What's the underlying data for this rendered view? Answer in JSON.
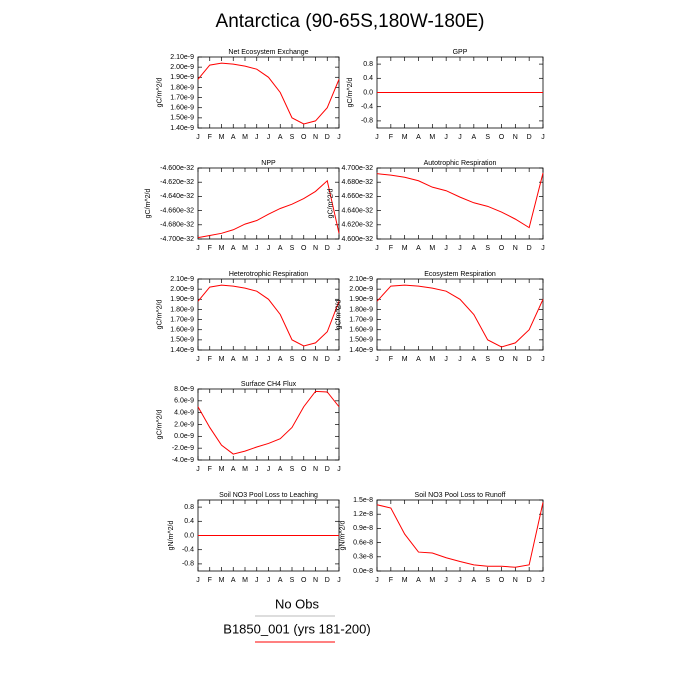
{
  "title": "Antarctica (90-65S,180W-180E)",
  "legend": [
    {
      "label": "No Obs",
      "color": "#bbbbbb"
    },
    {
      "label": "B1850_001 (yrs 181-200)",
      "color": "#ff0000"
    }
  ],
  "chart_data": [
    {
      "type": "line",
      "title": "Net Ecosystem Exchange",
      "ylabel": "gC/m^2/d",
      "categories": [
        "J",
        "F",
        "M",
        "A",
        "M",
        "J",
        "J",
        "A",
        "S",
        "O",
        "N",
        "D",
        "J"
      ],
      "values": [
        1.88e-09,
        2.02e-09,
        2.04e-09,
        2.03e-09,
        2.01e-09,
        1.98e-09,
        1.9e-09,
        1.75e-09,
        1.5e-09,
        1.44e-09,
        1.47e-09,
        1.6e-09,
        1.88e-09
      ],
      "color": "#ff0000",
      "ylim": [
        1.4e-09,
        2.1e-09
      ],
      "yticks": [
        {
          "value": 1.4e-09,
          "label": "1.40e-9"
        },
        {
          "value": 1.5e-09,
          "label": "1.50e-9"
        },
        {
          "value": 1.6e-09,
          "label": "1.60e-9"
        },
        {
          "value": 1.7e-09,
          "label": "1.70e-9"
        },
        {
          "value": 1.8e-09,
          "label": "1.80e-9"
        },
        {
          "value": 1.9e-09,
          "label": "1.90e-9"
        },
        {
          "value": 2e-09,
          "label": "2.00e-9"
        },
        {
          "value": 2.1e-09,
          "label": "2.10e-9"
        }
      ]
    },
    {
      "type": "line",
      "title": "GPP",
      "ylabel": "gC/m^2/d",
      "categories": [
        "J",
        "F",
        "M",
        "A",
        "M",
        "J",
        "J",
        "A",
        "S",
        "O",
        "N",
        "D",
        "J"
      ],
      "values": [
        0,
        0,
        0,
        0,
        0,
        0,
        0,
        0,
        0,
        0,
        0,
        0,
        0
      ],
      "color": "#ff0000",
      "ylim": [
        -1,
        1
      ],
      "yticks": [
        -0.8,
        -0.4,
        {
          "value": 0,
          "label": "0.0"
        },
        0.4,
        0.8
      ]
    },
    {
      "type": "line",
      "title": "NPP",
      "ylabel": "gC/m^2/d",
      "categories": [
        "J",
        "F",
        "M",
        "A",
        "M",
        "J",
        "J",
        "A",
        "S",
        "O",
        "N",
        "D",
        "J"
      ],
      "values": [
        -4.698e-32,
        -4.695e-32,
        -4.692e-32,
        -4.687e-32,
        -4.679e-32,
        -4.674e-32,
        -4.665e-32,
        -4.657e-32,
        -4.651e-32,
        -4.643e-32,
        -4.633e-32,
        -4.618e-32,
        -4.692e-32
      ],
      "color": "#ff0000",
      "ylim": [
        -4.7e-32,
        -4.6e-32
      ],
      "yticks": [
        {
          "value": -4.7e-32,
          "label": "-4.700e-32"
        },
        {
          "value": -4.68e-32,
          "label": "-4.680e-32"
        },
        {
          "value": -4.66e-32,
          "label": "-4.660e-32"
        },
        {
          "value": -4.64e-32,
          "label": "-4.640e-32"
        },
        {
          "value": -4.62e-32,
          "label": "-4.620e-32"
        },
        {
          "value": -4.6e-32,
          "label": "-4.600e-32"
        }
      ]
    },
    {
      "type": "line",
      "title": "Autotrophic Respiration",
      "ylabel": "gC/m^2/d",
      "categories": [
        "J",
        "F",
        "M",
        "A",
        "M",
        "J",
        "J",
        "A",
        "S",
        "O",
        "N",
        "D",
        "J"
      ],
      "values": [
        4.692e-32,
        4.69e-32,
        4.687e-32,
        4.682e-32,
        4.673e-32,
        4.668e-32,
        4.659e-32,
        4.651e-32,
        4.646e-32,
        4.638e-32,
        4.628e-32,
        4.616e-32,
        4.693e-32
      ],
      "color": "#ff0000",
      "ylim": [
        4.6e-32,
        4.7e-32
      ],
      "yticks": [
        {
          "value": 4.6e-32,
          "label": "4.600e-32"
        },
        {
          "value": 4.62e-32,
          "label": "4.620e-32"
        },
        {
          "value": 4.64e-32,
          "label": "4.640e-32"
        },
        {
          "value": 4.66e-32,
          "label": "4.660e-32"
        },
        {
          "value": 4.68e-32,
          "label": "4.680e-32"
        },
        {
          "value": 4.7e-32,
          "label": "4.700e-32"
        }
      ]
    },
    {
      "type": "line",
      "title": "Heterotrophic Respiration",
      "ylabel": "gC/m^2/d",
      "categories": [
        "J",
        "F",
        "M",
        "A",
        "M",
        "J",
        "J",
        "A",
        "S",
        "O",
        "N",
        "D",
        "J"
      ],
      "values": [
        1.88e-09,
        2.02e-09,
        2.04e-09,
        2.03e-09,
        2.01e-09,
        1.98e-09,
        1.9e-09,
        1.75e-09,
        1.5e-09,
        1.44e-09,
        1.47e-09,
        1.58e-09,
        1.88e-09
      ],
      "color": "#ff0000",
      "ylim": [
        1.4e-09,
        2.1e-09
      ],
      "yticks": [
        {
          "value": 1.4e-09,
          "label": "1.40e-9"
        },
        {
          "value": 1.5e-09,
          "label": "1.50e-9"
        },
        {
          "value": 1.6e-09,
          "label": "1.60e-9"
        },
        {
          "value": 1.7e-09,
          "label": "1.70e-9"
        },
        {
          "value": 1.8e-09,
          "label": "1.80e-9"
        },
        {
          "value": 1.9e-09,
          "label": "1.90e-9"
        },
        {
          "value": 2e-09,
          "label": "2.00e-9"
        },
        {
          "value": 2.1e-09,
          "label": "2.10e-9"
        }
      ]
    },
    {
      "type": "line",
      "title": "Ecosystem Respiration",
      "ylabel": "gC/m^2/d",
      "categories": [
        "J",
        "F",
        "M",
        "A",
        "M",
        "J",
        "J",
        "A",
        "S",
        "O",
        "N",
        "D",
        "J"
      ],
      "values": [
        1.88e-09,
        2.03e-09,
        2.04e-09,
        2.03e-09,
        2.01e-09,
        1.98e-09,
        1.9e-09,
        1.75e-09,
        1.5e-09,
        1.43e-09,
        1.47e-09,
        1.6e-09,
        1.9e-09
      ],
      "color": "#ff0000",
      "ylim": [
        1.4e-09,
        2.1e-09
      ],
      "yticks": [
        {
          "value": 1.4e-09,
          "label": "1.40e-9"
        },
        {
          "value": 1.5e-09,
          "label": "1.50e-9"
        },
        {
          "value": 1.6e-09,
          "label": "1.60e-9"
        },
        {
          "value": 1.7e-09,
          "label": "1.70e-9"
        },
        {
          "value": 1.8e-09,
          "label": "1.80e-9"
        },
        {
          "value": 1.9e-09,
          "label": "1.90e-9"
        },
        {
          "value": 2e-09,
          "label": "2.00e-9"
        },
        {
          "value": 2.1e-09,
          "label": "2.10e-9"
        }
      ]
    },
    {
      "type": "line",
      "title": "Surface CH4 Flux",
      "ylabel": "gC/m^2/d",
      "categories": [
        "J",
        "F",
        "M",
        "A",
        "M",
        "J",
        "J",
        "A",
        "S",
        "O",
        "N",
        "D",
        "J"
      ],
      "values": [
        5e-09,
        1.5e-09,
        -1.5e-09,
        -3e-09,
        -2.5e-09,
        -1.8e-09,
        -1.2e-09,
        -4e-10,
        1.5e-09,
        5e-09,
        7.6e-09,
        7.5e-09,
        5e-09
      ],
      "color": "#ff0000",
      "ylim": [
        -4e-09,
        8e-09
      ],
      "yticks": [
        {
          "value": -4e-09,
          "label": "-4.0e-9"
        },
        {
          "value": -2e-09,
          "label": "-2.0e-9"
        },
        {
          "value": 0,
          "label": "0.0e-9"
        },
        {
          "value": 2e-09,
          "label": "2.0e-9"
        },
        {
          "value": 4e-09,
          "label": "4.0e-9"
        },
        {
          "value": 6e-09,
          "label": "6.0e-9"
        },
        {
          "value": 8e-09,
          "label": "8.0e-9"
        }
      ]
    },
    {
      "type": "line",
      "title": "Soil NO3 Pool Loss to Leaching",
      "ylabel": "gN/m^2/d",
      "categories": [
        "J",
        "F",
        "M",
        "A",
        "M",
        "J",
        "J",
        "A",
        "S",
        "O",
        "N",
        "D",
        "J"
      ],
      "values": [
        0,
        0,
        0,
        0,
        0,
        0,
        0,
        0,
        0,
        0,
        0,
        0,
        0
      ],
      "color": "#ff0000",
      "ylim": [
        -1,
        1
      ],
      "yticks": [
        -0.8,
        -0.4,
        {
          "value": 0,
          "label": "0.0"
        },
        0.4,
        0.8
      ]
    },
    {
      "type": "line",
      "title": "Soil NO3 Pool Loss to Runoff",
      "ylabel": "gN/m^2/d",
      "categories": [
        "J",
        "F",
        "M",
        "A",
        "M",
        "J",
        "J",
        "A",
        "S",
        "O",
        "N",
        "D",
        "J"
      ],
      "values": [
        1.4e-08,
        1.33e-08,
        7.8e-09,
        4e-09,
        3.8e-09,
        2.8e-09,
        2e-09,
        1.3e-09,
        1e-09,
        1e-09,
        8e-10,
        1.3e-09,
        1.45e-08
      ],
      "color": "#ff0000",
      "ylim": [
        0,
        1.5e-08
      ],
      "yticks": [
        {
          "value": 0,
          "label": "0.0e-8"
        },
        {
          "value": 3e-09,
          "label": "0.3e-8"
        },
        {
          "value": 6e-09,
          "label": "0.6e-8"
        },
        {
          "value": 9e-09,
          "label": "0.9e-8"
        },
        {
          "value": 1.2e-08,
          "label": "1.2e-8"
        },
        {
          "value": 1.5e-08,
          "label": "1.5e-8"
        }
      ]
    }
  ]
}
